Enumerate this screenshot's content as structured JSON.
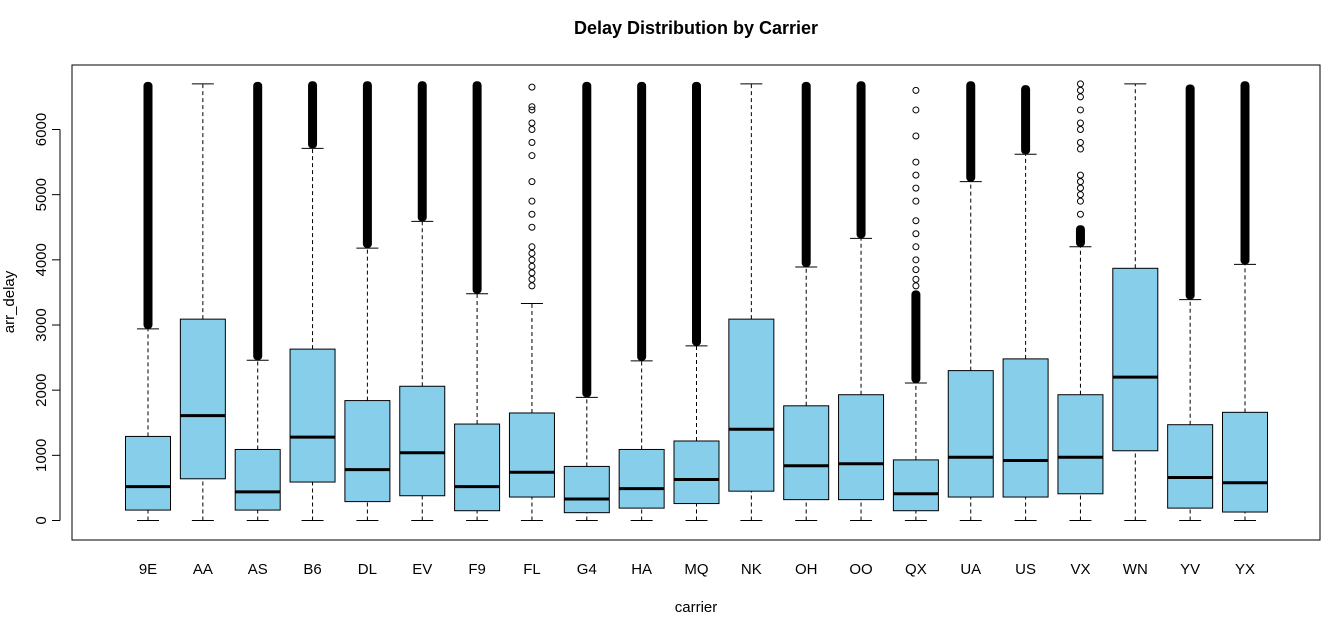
{
  "chart_data": {
    "type": "boxplot",
    "title": "Delay Distribution by Carrier",
    "xlabel": "carrier",
    "ylabel": "arr_delay",
    "ylim": [
      -250,
      6950
    ],
    "yticks": [
      0,
      1000,
      2000,
      3000,
      4000,
      5000,
      6000
    ],
    "box_color": "#87CEEB",
    "grid": false,
    "categories": [
      "9E",
      "AA",
      "AS",
      "B6",
      "DL",
      "EV",
      "F9",
      "FL",
      "G4",
      "HA",
      "MQ",
      "NK",
      "OH",
      "OO",
      "QX",
      "UA",
      "US",
      "VX",
      "WN",
      "YV",
      "YX"
    ],
    "boxes": [
      {
        "carrier": "9E",
        "lower_whisker": 0,
        "q1": 160,
        "median": 520,
        "q3": 1290,
        "upper_whisker": 2940,
        "outlier_band": [
          2940,
          6700
        ],
        "outliers": []
      },
      {
        "carrier": "AA",
        "lower_whisker": 0,
        "q1": 640,
        "median": 1610,
        "q3": 3090,
        "upper_whisker": 6700,
        "outlier_band": null,
        "outliers": []
      },
      {
        "carrier": "AS",
        "lower_whisker": 0,
        "q1": 160,
        "median": 440,
        "q3": 1090,
        "upper_whisker": 2460,
        "outlier_band": [
          2460,
          6700
        ],
        "outliers": []
      },
      {
        "carrier": "B6",
        "lower_whisker": 0,
        "q1": 590,
        "median": 1280,
        "q3": 2630,
        "upper_whisker": 5710,
        "outlier_band": [
          5710,
          6710
        ],
        "outliers": []
      },
      {
        "carrier": "DL",
        "lower_whisker": 0,
        "q1": 290,
        "median": 780,
        "q3": 1840,
        "upper_whisker": 4180,
        "outlier_band": [
          4180,
          6710
        ],
        "outliers": []
      },
      {
        "carrier": "EV",
        "lower_whisker": 0,
        "q1": 380,
        "median": 1040,
        "q3": 2060,
        "upper_whisker": 4590,
        "outlier_band": [
          4590,
          6710
        ],
        "outliers": []
      },
      {
        "carrier": "F9",
        "lower_whisker": 0,
        "q1": 150,
        "median": 520,
        "q3": 1480,
        "upper_whisker": 3480,
        "outlier_band": [
          3480,
          6710
        ],
        "outliers": []
      },
      {
        "carrier": "FL",
        "lower_whisker": 0,
        "q1": 360,
        "median": 740,
        "q3": 1650,
        "upper_whisker": 3330,
        "outlier_band": null,
        "outliers": [
          3600,
          3700,
          3800,
          3900,
          4000,
          4100,
          4200,
          4500,
          4700,
          4900,
          5200,
          5600,
          5800,
          6000,
          6100,
          6300,
          6350,
          6650
        ]
      },
      {
        "carrier": "G4",
        "lower_whisker": 0,
        "q1": 120,
        "median": 330,
        "q3": 830,
        "upper_whisker": 1890,
        "outlier_band": [
          1890,
          6700
        ],
        "outliers": []
      },
      {
        "carrier": "HA",
        "lower_whisker": 0,
        "q1": 190,
        "median": 490,
        "q3": 1090,
        "upper_whisker": 2450,
        "outlier_band": [
          2450,
          6700
        ],
        "outliers": []
      },
      {
        "carrier": "MQ",
        "lower_whisker": 0,
        "q1": 260,
        "median": 630,
        "q3": 1220,
        "upper_whisker": 2680,
        "outlier_band": [
          2680,
          6700
        ],
        "outliers": []
      },
      {
        "carrier": "NK",
        "lower_whisker": 0,
        "q1": 450,
        "median": 1400,
        "q3": 3090,
        "upper_whisker": 6700,
        "outlier_band": null,
        "outliers": []
      },
      {
        "carrier": "OH",
        "lower_whisker": 0,
        "q1": 320,
        "median": 840,
        "q3": 1760,
        "upper_whisker": 3890,
        "outlier_band": [
          3890,
          6700
        ],
        "outliers": []
      },
      {
        "carrier": "OO",
        "lower_whisker": 0,
        "q1": 320,
        "median": 870,
        "q3": 1930,
        "upper_whisker": 4330,
        "outlier_band": [
          4330,
          6710
        ],
        "outliers": []
      },
      {
        "carrier": "QX",
        "lower_whisker": 0,
        "q1": 150,
        "median": 410,
        "q3": 930,
        "upper_whisker": 2110,
        "outlier_band": [
          2110,
          3500
        ],
        "outliers": [
          3600,
          3700,
          3850,
          4000,
          4200,
          4400,
          4600,
          4900,
          5100,
          5300,
          5500,
          5900,
          6300,
          6600
        ]
      },
      {
        "carrier": "UA",
        "lower_whisker": 0,
        "q1": 360,
        "median": 970,
        "q3": 2300,
        "upper_whisker": 5200,
        "outlier_band": [
          5200,
          6710
        ],
        "outliers": []
      },
      {
        "carrier": "US",
        "lower_whisker": 0,
        "q1": 360,
        "median": 920,
        "q3": 2480,
        "upper_whisker": 5620,
        "outlier_band": [
          5620,
          6650
        ],
        "outliers": []
      },
      {
        "carrier": "VX",
        "lower_whisker": 0,
        "q1": 410,
        "median": 970,
        "q3": 1930,
        "upper_whisker": 4200,
        "outlier_band": [
          4200,
          4500
        ],
        "outliers": [
          4700,
          4900,
          5000,
          5100,
          5200,
          5300,
          5700,
          5800,
          6000,
          6100,
          6300,
          6500,
          6600,
          6700
        ]
      },
      {
        "carrier": "WN",
        "lower_whisker": 0,
        "q1": 1070,
        "median": 2200,
        "q3": 3870,
        "upper_whisker": 6700,
        "outlier_band": null,
        "outliers": []
      },
      {
        "carrier": "YV",
        "lower_whisker": 0,
        "q1": 190,
        "median": 660,
        "q3": 1470,
        "upper_whisker": 3390,
        "outlier_band": [
          3390,
          6660
        ],
        "outliers": []
      },
      {
        "carrier": "YX",
        "lower_whisker": 0,
        "q1": 130,
        "median": 580,
        "q3": 1660,
        "upper_whisker": 3930,
        "outlier_band": [
          3930,
          6710
        ],
        "outliers": []
      }
    ]
  }
}
